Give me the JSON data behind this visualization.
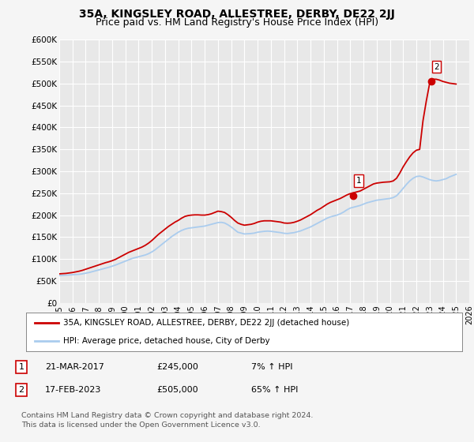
{
  "title": "35A, KINGSLEY ROAD, ALLESTREE, DERBY, DE22 2JJ",
  "subtitle": "Price paid vs. HM Land Registry's House Price Index (HPI)",
  "title_fontsize": 10,
  "subtitle_fontsize": 9,
  "ylabel_ticks": [
    "£0",
    "£50K",
    "£100K",
    "£150K",
    "£200K",
    "£250K",
    "£300K",
    "£350K",
    "£400K",
    "£450K",
    "£500K",
    "£550K",
    "£600K"
  ],
  "ylim": [
    0,
    600000
  ],
  "xlim": [
    1995,
    2026
  ],
  "background_color": "#f5f5f5",
  "plot_bg_color": "#e8e8e8",
  "grid_color": "#ffffff",
  "red_line_color": "#cc0000",
  "blue_line_color": "#aaccee",
  "marker1_date": 2017.22,
  "marker1_value": 245000,
  "marker1_label": "1",
  "marker2_date": 2023.12,
  "marker2_value": 505000,
  "marker2_label": "2",
  "legend_line1": "35A, KINGSLEY ROAD, ALLESTREE, DERBY, DE22 2JJ (detached house)",
  "legend_line2": "HPI: Average price, detached house, City of Derby",
  "table_rows": [
    {
      "num": "1",
      "date": "21-MAR-2017",
      "price": "£245,000",
      "hpi": "7% ↑ HPI"
    },
    {
      "num": "2",
      "date": "17-FEB-2023",
      "price": "£505,000",
      "hpi": "65% ↑ HPI"
    }
  ],
  "footnote": "Contains HM Land Registry data © Crown copyright and database right 2024.\nThis data is licensed under the Open Government Licence v3.0.",
  "hpi_years": [
    1995.0,
    1995.25,
    1995.5,
    1995.75,
    1996.0,
    1996.25,
    1996.5,
    1996.75,
    1997.0,
    1997.25,
    1997.5,
    1997.75,
    1998.0,
    1998.25,
    1998.5,
    1998.75,
    1999.0,
    1999.25,
    1999.5,
    1999.75,
    2000.0,
    2000.25,
    2000.5,
    2000.75,
    2001.0,
    2001.25,
    2001.5,
    2001.75,
    2002.0,
    2002.25,
    2002.5,
    2002.75,
    2003.0,
    2003.25,
    2003.5,
    2003.75,
    2004.0,
    2004.25,
    2004.5,
    2004.75,
    2005.0,
    2005.25,
    2005.5,
    2005.75,
    2006.0,
    2006.25,
    2006.5,
    2006.75,
    2007.0,
    2007.25,
    2007.5,
    2007.75,
    2008.0,
    2008.25,
    2008.5,
    2008.75,
    2009.0,
    2009.25,
    2009.5,
    2009.75,
    2010.0,
    2010.25,
    2010.5,
    2010.75,
    2011.0,
    2011.25,
    2011.5,
    2011.75,
    2012.0,
    2012.25,
    2012.5,
    2012.75,
    2013.0,
    2013.25,
    2013.5,
    2013.75,
    2014.0,
    2014.25,
    2014.5,
    2014.75,
    2015.0,
    2015.25,
    2015.5,
    2015.75,
    2016.0,
    2016.25,
    2016.5,
    2016.75,
    2017.0,
    2017.25,
    2017.5,
    2017.75,
    2018.0,
    2018.25,
    2018.5,
    2018.75,
    2019.0,
    2019.25,
    2019.5,
    2019.75,
    2020.0,
    2020.25,
    2020.5,
    2020.75,
    2021.0,
    2021.25,
    2021.5,
    2021.75,
    2022.0,
    2022.25,
    2022.5,
    2022.75,
    2023.0,
    2023.25,
    2023.5,
    2023.75,
    2024.0,
    2024.25,
    2024.5,
    2024.75,
    2025.0
  ],
  "hpi_values": [
    62000,
    62500,
    63000,
    63500,
    64000,
    64500,
    65000,
    66000,
    67500,
    69000,
    71000,
    73000,
    75000,
    77000,
    79000,
    81000,
    83500,
    86000,
    89000,
    92000,
    95000,
    98000,
    101000,
    103000,
    105000,
    107000,
    109000,
    112000,
    116000,
    121000,
    127000,
    133000,
    139000,
    145000,
    151000,
    156000,
    161000,
    165000,
    168000,
    170000,
    171000,
    172000,
    173000,
    174000,
    175000,
    177000,
    179000,
    181000,
    183000,
    183500,
    182000,
    178000,
    173000,
    167000,
    161000,
    159000,
    157000,
    157500,
    158000,
    159000,
    161000,
    162000,
    163000,
    163500,
    163000,
    162000,
    161000,
    160000,
    158500,
    158000,
    159000,
    160000,
    162000,
    164000,
    167000,
    170000,
    173000,
    177000,
    181000,
    185000,
    189000,
    193000,
    196000,
    198000,
    200000,
    203000,
    207000,
    212000,
    216000,
    218000,
    220000,
    222000,
    225000,
    228000,
    230000,
    232000,
    234000,
    235000,
    236000,
    237000,
    238000,
    240000,
    244000,
    252000,
    261000,
    270000,
    278000,
    284000,
    288000,
    289000,
    287000,
    284000,
    281000,
    279000,
    278000,
    279000,
    281000,
    283000,
    287000,
    290000,
    293000
  ],
  "price_years": [
    1995.0,
    1995.25,
    1995.5,
    1995.75,
    1996.0,
    1996.25,
    1996.5,
    1996.75,
    1997.0,
    1997.25,
    1997.5,
    1997.75,
    1998.0,
    1998.25,
    1998.5,
    1998.75,
    1999.0,
    1999.25,
    1999.5,
    1999.75,
    2000.0,
    2000.25,
    2000.5,
    2000.75,
    2001.0,
    2001.25,
    2001.5,
    2001.75,
    2002.0,
    2002.25,
    2002.5,
    2002.75,
    2003.0,
    2003.25,
    2003.5,
    2003.75,
    2004.0,
    2004.25,
    2004.5,
    2004.75,
    2005.0,
    2005.25,
    2005.5,
    2005.75,
    2006.0,
    2006.25,
    2006.5,
    2006.75,
    2007.0,
    2007.25,
    2007.5,
    2007.75,
    2008.0,
    2008.25,
    2008.5,
    2008.75,
    2009.0,
    2009.25,
    2009.5,
    2009.75,
    2010.0,
    2010.25,
    2010.5,
    2010.75,
    2011.0,
    2011.25,
    2011.5,
    2011.75,
    2012.0,
    2012.25,
    2012.5,
    2012.75,
    2013.0,
    2013.25,
    2013.5,
    2013.75,
    2014.0,
    2014.25,
    2014.5,
    2014.75,
    2015.0,
    2015.25,
    2015.5,
    2015.75,
    2016.0,
    2016.25,
    2016.5,
    2016.75,
    2017.0,
    2017.25,
    2017.5,
    2017.75,
    2018.0,
    2018.25,
    2018.5,
    2018.75,
    2019.0,
    2019.25,
    2019.5,
    2019.75,
    2020.0,
    2020.25,
    2020.5,
    2020.75,
    2021.0,
    2021.25,
    2021.5,
    2021.75,
    2022.0,
    2022.25,
    2022.5,
    2022.75,
    2023.0,
    2023.25,
    2023.5,
    2023.75,
    2024.0,
    2024.25,
    2024.5,
    2024.75,
    2025.0
  ],
  "price_values": [
    66000,
    66500,
    67000,
    68000,
    69000,
    70500,
    72000,
    74000,
    76500,
    79000,
    81500,
    84000,
    86500,
    89000,
    91500,
    93500,
    96000,
    99000,
    103000,
    107000,
    111000,
    115000,
    118000,
    121000,
    124000,
    127000,
    131000,
    136000,
    142000,
    149000,
    156000,
    162000,
    168000,
    174000,
    179000,
    184000,
    188000,
    193000,
    197000,
    199000,
    200000,
    200500,
    200500,
    200000,
    200000,
    201000,
    203000,
    206000,
    209000,
    208000,
    206000,
    201000,
    195000,
    188000,
    182000,
    179000,
    177000,
    178000,
    179000,
    181000,
    184000,
    186000,
    187000,
    187000,
    187000,
    186000,
    185000,
    184000,
    182000,
    181500,
    182000,
    183500,
    186000,
    189000,
    193000,
    197000,
    201000,
    206000,
    211000,
    215000,
    220000,
    225000,
    229000,
    232000,
    235000,
    238000,
    242000,
    246000,
    249000,
    251000,
    253000,
    255000,
    259000,
    263000,
    267000,
    271000,
    273000,
    274000,
    275000,
    275500,
    276000,
    278000,
    284000,
    296000,
    310000,
    322000,
    333000,
    342000,
    348000,
    350000,
    415000,
    460000,
    500000,
    510000,
    510000,
    508000,
    505000,
    503000,
    501000,
    500000,
    499000
  ],
  "xtick_years": [
    1995,
    1996,
    1997,
    1998,
    1999,
    2000,
    2001,
    2002,
    2003,
    2004,
    2005,
    2006,
    2007,
    2008,
    2009,
    2010,
    2011,
    2012,
    2013,
    2014,
    2015,
    2016,
    2017,
    2018,
    2019,
    2020,
    2021,
    2022,
    2023,
    2024,
    2025,
    2026
  ]
}
